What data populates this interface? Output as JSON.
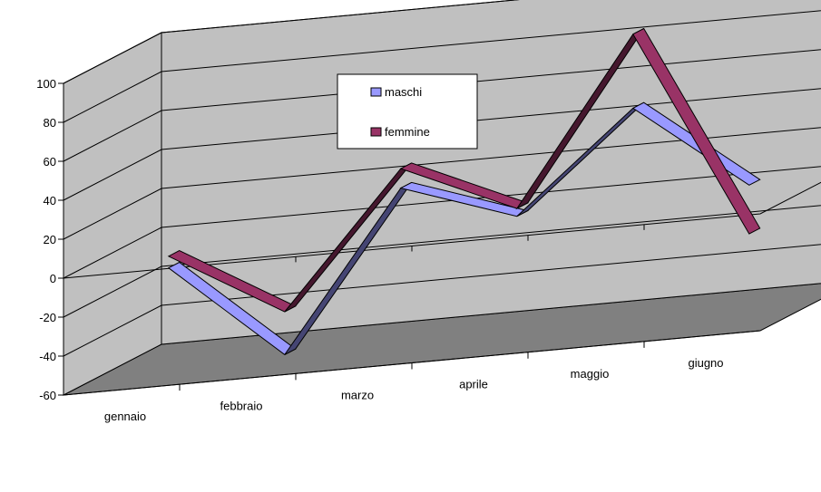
{
  "chart_data": {
    "type": "line",
    "title": "",
    "xlabel": "",
    "ylabel": "",
    "categories": [
      "gennaio",
      "febbraio",
      "marzo",
      "aprile",
      "maggio",
      "giugno"
    ],
    "ylim": [
      -60,
      100
    ],
    "yticks": [
      -60,
      -40,
      -20,
      0,
      20,
      40,
      60,
      80,
      100
    ],
    "grid": true,
    "legend_position": "top-center",
    "series": [
      {
        "name": "maschi",
        "values": [
          -10,
          -60,
          20,
          0,
          50,
          5
        ],
        "color": "#9999ff"
      },
      {
        "name": "femmine",
        "values": [
          -4,
          -38,
          30,
          4,
          88,
          -20
        ],
        "color": "#993366"
      }
    ],
    "colors": {
      "wall": "#c0c0c0",
      "floor": "#808080",
      "gridline": "#000000"
    }
  }
}
